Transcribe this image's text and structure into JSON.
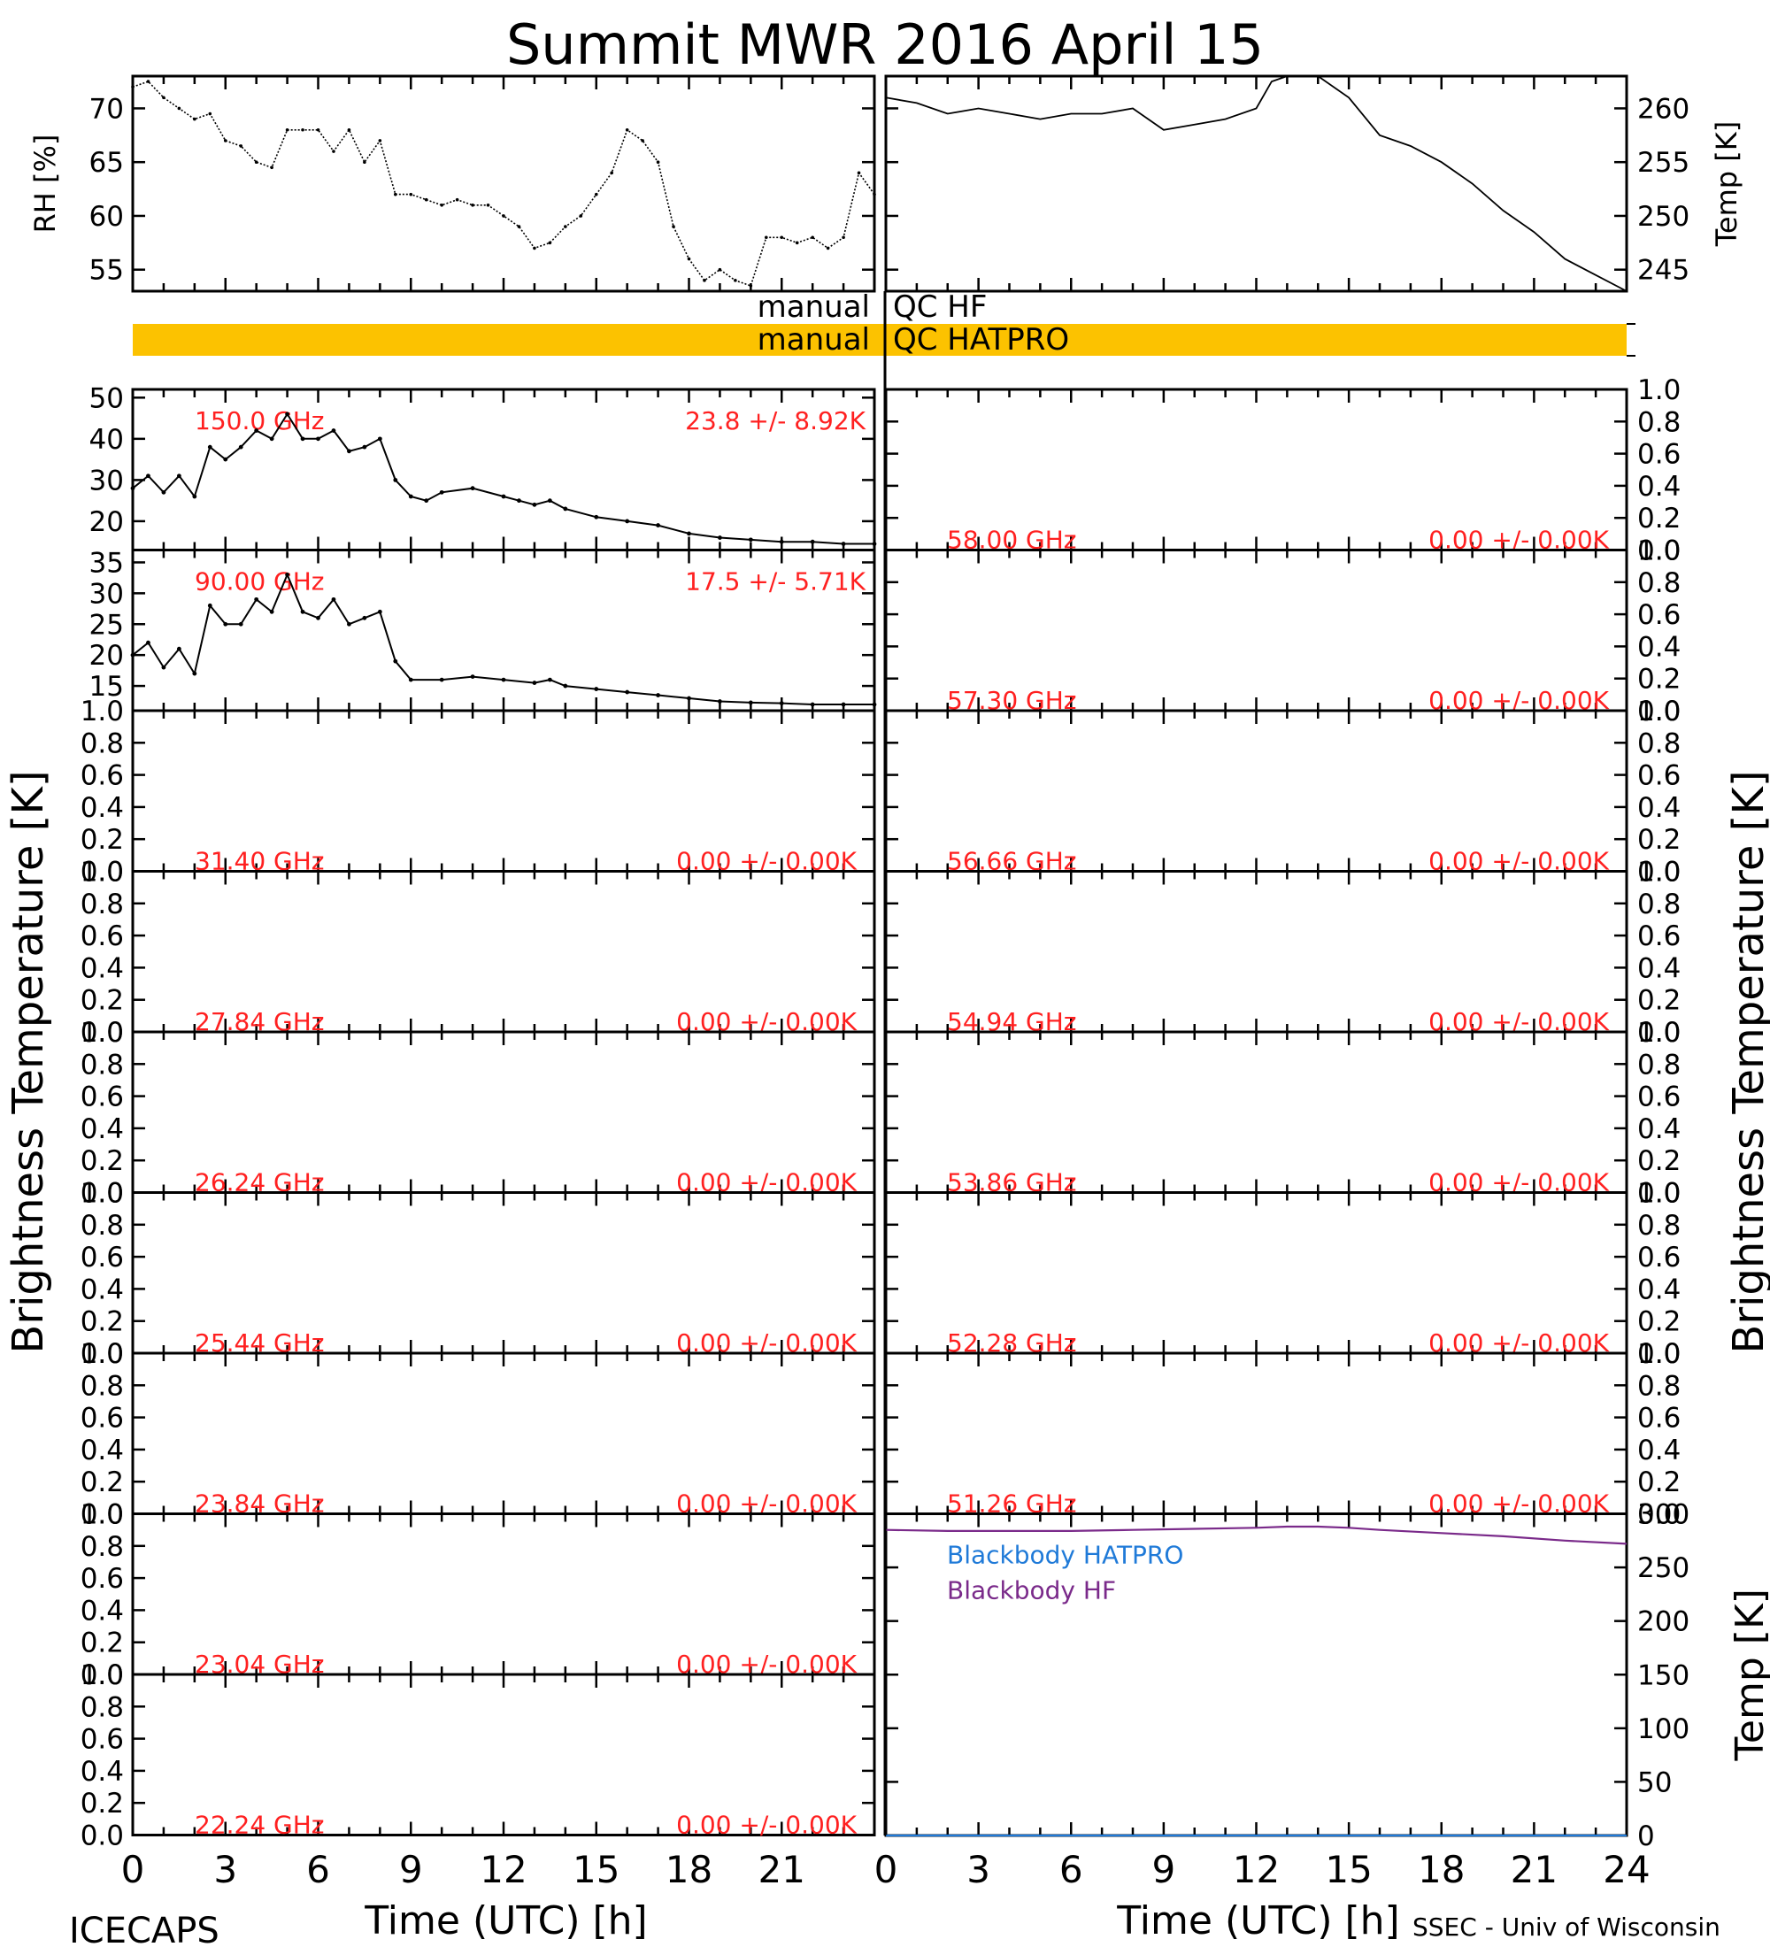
{
  "title": "Summit MWR 2016 April 15",
  "footer": {
    "left": "ICECAPS",
    "right": "SSEC - Univ of Wisconsin"
  },
  "colors": {
    "axis": "#000000",
    "panel_label": "#ff2020",
    "qc_bar": "#fcc200",
    "blackbody_hatpro": "#1f7ad8",
    "blackbody_hf": "#7a2a8a"
  },
  "x_axis": {
    "label": "Time (UTC) [h]",
    "left_ticks": [
      "0",
      "3",
      "6",
      "9",
      "12",
      "15",
      "18",
      "21"
    ],
    "right_ticks": [
      "0",
      "3",
      "6",
      "9",
      "12",
      "15",
      "18",
      "21",
      "24"
    ],
    "range": [
      0,
      24
    ]
  },
  "side_labels": {
    "left": "Brightness Temperature [K]",
    "right": "Brightness Temperature [K]"
  },
  "met": {
    "rh": {
      "ylabel": "RH [%]",
      "ylim": [
        53,
        73
      ],
      "ticks": [
        "55",
        "60",
        "65",
        "70"
      ]
    },
    "temp": {
      "ylabel": "Temp [K]",
      "ylim": [
        243,
        263
      ],
      "ticks": [
        "245",
        "250",
        "255",
        "260"
      ]
    }
  },
  "qc": {
    "hf_left": "manual",
    "hf_right": "QC HF",
    "hatpro_left": "manual",
    "hatpro_right": "QC HATPRO"
  },
  "panels_left": [
    {
      "freq": "150.0 GHz",
      "stat": "23.8 +/-  8.92K",
      "ylim": [
        13,
        52
      ],
      "ticks": [
        "20",
        "30",
        "40",
        "50"
      ],
      "has_data": true
    },
    {
      "freq": "90.00 GHz",
      "stat": "17.5 +/-  5.71K",
      "ylim": [
        11,
        37
      ],
      "ticks": [
        "15",
        "20",
        "25",
        "30",
        "35"
      ],
      "has_data": true
    },
    {
      "freq": "31.40 GHz",
      "stat": "0.00 +/-  0.00K",
      "ylim": [
        0,
        1
      ],
      "ticks": [
        "0.0",
        "0.2",
        "0.4",
        "0.6",
        "0.8",
        "1.0"
      ],
      "has_data": false
    },
    {
      "freq": "27.84 GHz",
      "stat": "0.00 +/-  0.00K",
      "ylim": [
        0,
        1
      ],
      "ticks": [
        "0.0",
        "0.2",
        "0.4",
        "0.6",
        "0.8",
        "1.0"
      ],
      "has_data": false
    },
    {
      "freq": "26.24 GHz",
      "stat": "0.00 +/-  0.00K",
      "ylim": [
        0,
        1
      ],
      "ticks": [
        "0.0",
        "0.2",
        "0.4",
        "0.6",
        "0.8",
        "1.0"
      ],
      "has_data": false
    },
    {
      "freq": "25.44 GHz",
      "stat": "0.00 +/-  0.00K",
      "ylim": [
        0,
        1
      ],
      "ticks": [
        "0.0",
        "0.2",
        "0.4",
        "0.6",
        "0.8",
        "1.0"
      ],
      "has_data": false
    },
    {
      "freq": "23.84 GHz",
      "stat": "0.00 +/-  0.00K",
      "ylim": [
        0,
        1
      ],
      "ticks": [
        "0.0",
        "0.2",
        "0.4",
        "0.6",
        "0.8",
        "1.0"
      ],
      "has_data": false
    },
    {
      "freq": "23.04 GHz",
      "stat": "0.00 +/-  0.00K",
      "ylim": [
        0,
        1
      ],
      "ticks": [
        "0.0",
        "0.2",
        "0.4",
        "0.6",
        "0.8",
        "1.0"
      ],
      "has_data": false
    },
    {
      "freq": "22.24 GHz",
      "stat": "0.00 +/-  0.00K",
      "ylim": [
        0,
        1
      ],
      "ticks": [
        "0.0",
        "0.2",
        "0.4",
        "0.6",
        "0.8",
        "1.0"
      ],
      "has_data": false
    }
  ],
  "panels_right": [
    {
      "freq": "58.00 GHz",
      "stat": "0.00 +/-  0.00K",
      "ylim": [
        0,
        1
      ],
      "ticks": [
        "0.0",
        "0.2",
        "0.4",
        "0.6",
        "0.8",
        "1.0"
      ]
    },
    {
      "freq": "57.30 GHz",
      "stat": "0.00 +/-  0.00K",
      "ylim": [
        0,
        1
      ],
      "ticks": [
        "0.0",
        "0.2",
        "0.4",
        "0.6",
        "0.8",
        "1.0"
      ]
    },
    {
      "freq": "56.66 GHz",
      "stat": "0.00 +/-  0.00K",
      "ylim": [
        0,
        1
      ],
      "ticks": [
        "0.0",
        "0.2",
        "0.4",
        "0.6",
        "0.8",
        "1.0"
      ]
    },
    {
      "freq": "54.94 GHz",
      "stat": "0.00 +/-  0.00K",
      "ylim": [
        0,
        1
      ],
      "ticks": [
        "0.0",
        "0.2",
        "0.4",
        "0.6",
        "0.8",
        "1.0"
      ]
    },
    {
      "freq": "53.86 GHz",
      "stat": "0.00 +/-  0.00K",
      "ylim": [
        0,
        1
      ],
      "ticks": [
        "0.0",
        "0.2",
        "0.4",
        "0.6",
        "0.8",
        "1.0"
      ]
    },
    {
      "freq": "52.28 GHz",
      "stat": "0.00 +/-  0.00K",
      "ylim": [
        0,
        1
      ],
      "ticks": [
        "0.0",
        "0.2",
        "0.4",
        "0.6",
        "0.8",
        "1.0"
      ]
    },
    {
      "freq": "51.26 GHz",
      "stat": "0.00 +/-  0.00K",
      "ylim": [
        0,
        1
      ],
      "ticks": [
        "0.0",
        "0.2",
        "0.4",
        "0.6",
        "0.8",
        "1.0"
      ]
    }
  ],
  "blackbody": {
    "ylabel": "Temp [K]",
    "ylim": [
      0,
      300
    ],
    "ticks": [
      "0",
      "50",
      "100",
      "150",
      "200",
      "250",
      "300"
    ],
    "legend": [
      "Blackbody HATPRO",
      "Blackbody HF"
    ]
  },
  "chart_data": [
    {
      "type": "scatter",
      "panel": "RH",
      "ylabel": "RH [%]",
      "xlim": [
        0,
        24
      ],
      "ylim": [
        53,
        73
      ],
      "x": [
        0,
        0.5,
        1,
        1.5,
        2,
        2.5,
        3,
        3.5,
        4,
        4.5,
        5,
        5.5,
        6,
        6.5,
        7,
        7.5,
        8,
        8.5,
        9,
        9.5,
        10,
        10.5,
        11,
        11.5,
        12,
        12.5,
        13,
        13.5,
        14,
        14.5,
        15,
        15.5,
        16,
        16.5,
        17,
        17.5,
        18,
        18.5,
        19,
        19.5,
        20,
        20.5,
        21,
        21.5,
        22,
        22.5,
        23,
        23.5,
        24
      ],
      "y": [
        72,
        72.5,
        71,
        70,
        69,
        69.5,
        67,
        66.5,
        65,
        64.5,
        68,
        68,
        68,
        66,
        68,
        65,
        67,
        62,
        62,
        61.5,
        61,
        61.5,
        61,
        61,
        60,
        59,
        57,
        57.5,
        59,
        60,
        62,
        64,
        68,
        67,
        65,
        59,
        56,
        54,
        55,
        54,
        53.5,
        58,
        58,
        57.5,
        58,
        57,
        58,
        64,
        62
      ]
    },
    {
      "type": "line",
      "panel": "Temp",
      "ylabel": "Temp [K]",
      "xlim": [
        0,
        24
      ],
      "ylim": [
        243,
        263
      ],
      "x": [
        0,
        1,
        2,
        3,
        4,
        5,
        6,
        7,
        8,
        9,
        10,
        11,
        12,
        12.5,
        13,
        14,
        15,
        16,
        17,
        18,
        19,
        20,
        21,
        22,
        23,
        24
      ],
      "y": [
        261,
        260.5,
        259.5,
        260,
        259.5,
        259,
        259.5,
        259.5,
        260,
        258,
        258.5,
        259,
        260,
        262.5,
        263,
        263,
        261,
        257.5,
        256.5,
        255,
        253,
        250.5,
        248.5,
        246,
        244.5,
        243
      ]
    },
    {
      "type": "scatter",
      "panel": "150.0 GHz",
      "xlim": [
        0,
        24
      ],
      "ylim": [
        13,
        52
      ],
      "x": [
        0,
        0.5,
        1,
        1.5,
        2,
        2.5,
        3,
        3.5,
        4,
        4.5,
        5,
        5.5,
        6,
        6.5,
        7,
        7.5,
        8,
        8.5,
        9,
        9.5,
        10,
        11,
        12,
        12.5,
        13,
        13.5,
        14,
        15,
        16,
        17,
        18,
        19,
        20,
        21,
        22,
        23,
        24
      ],
      "y": [
        28,
        31,
        27,
        31,
        26,
        38,
        35,
        38,
        42,
        40,
        46,
        40,
        40,
        42,
        37,
        38,
        40,
        30,
        26,
        25,
        27,
        28,
        26,
        25,
        24,
        25,
        23,
        21,
        20,
        19,
        17,
        16,
        15.5,
        15,
        15,
        14.5,
        14.5
      ]
    },
    {
      "type": "scatter",
      "panel": "90.00 GHz",
      "xlim": [
        0,
        24
      ],
      "ylim": [
        11,
        37
      ],
      "x": [
        0,
        0.5,
        1,
        1.5,
        2,
        2.5,
        3,
        3.5,
        4,
        4.5,
        5,
        5.5,
        6,
        6.5,
        7,
        7.5,
        8,
        8.5,
        9,
        10,
        11,
        12,
        13,
        13.5,
        14,
        15,
        16,
        17,
        18,
        19,
        20,
        21,
        22,
        23,
        24
      ],
      "y": [
        20,
        22,
        18,
        21,
        17,
        28,
        25,
        25,
        29,
        27,
        33,
        27,
        26,
        29,
        25,
        26,
        27,
        19,
        16,
        16,
        16.5,
        16,
        15.5,
        16,
        15,
        14.5,
        14,
        13.5,
        13,
        12.5,
        12.3,
        12.2,
        12,
        12,
        12
      ]
    },
    {
      "type": "line",
      "panel": "Blackbody",
      "ylabel": "Temp [K]",
      "xlim": [
        0,
        24
      ],
      "ylim": [
        0,
        300
      ],
      "series": [
        {
          "name": "Blackbody HATPRO",
          "x": [
            0,
            24
          ],
          "y": [
            0,
            0
          ]
        },
        {
          "name": "Blackbody HF",
          "x": [
            0,
            2,
            4,
            6,
            8,
            10,
            12,
            13,
            14,
            15,
            16,
            18,
            20,
            22,
            24
          ],
          "y": [
            285,
            284,
            284,
            284,
            285,
            286,
            287,
            288,
            288,
            287,
            285,
            282,
            279,
            275,
            272
          ]
        }
      ]
    }
  ]
}
